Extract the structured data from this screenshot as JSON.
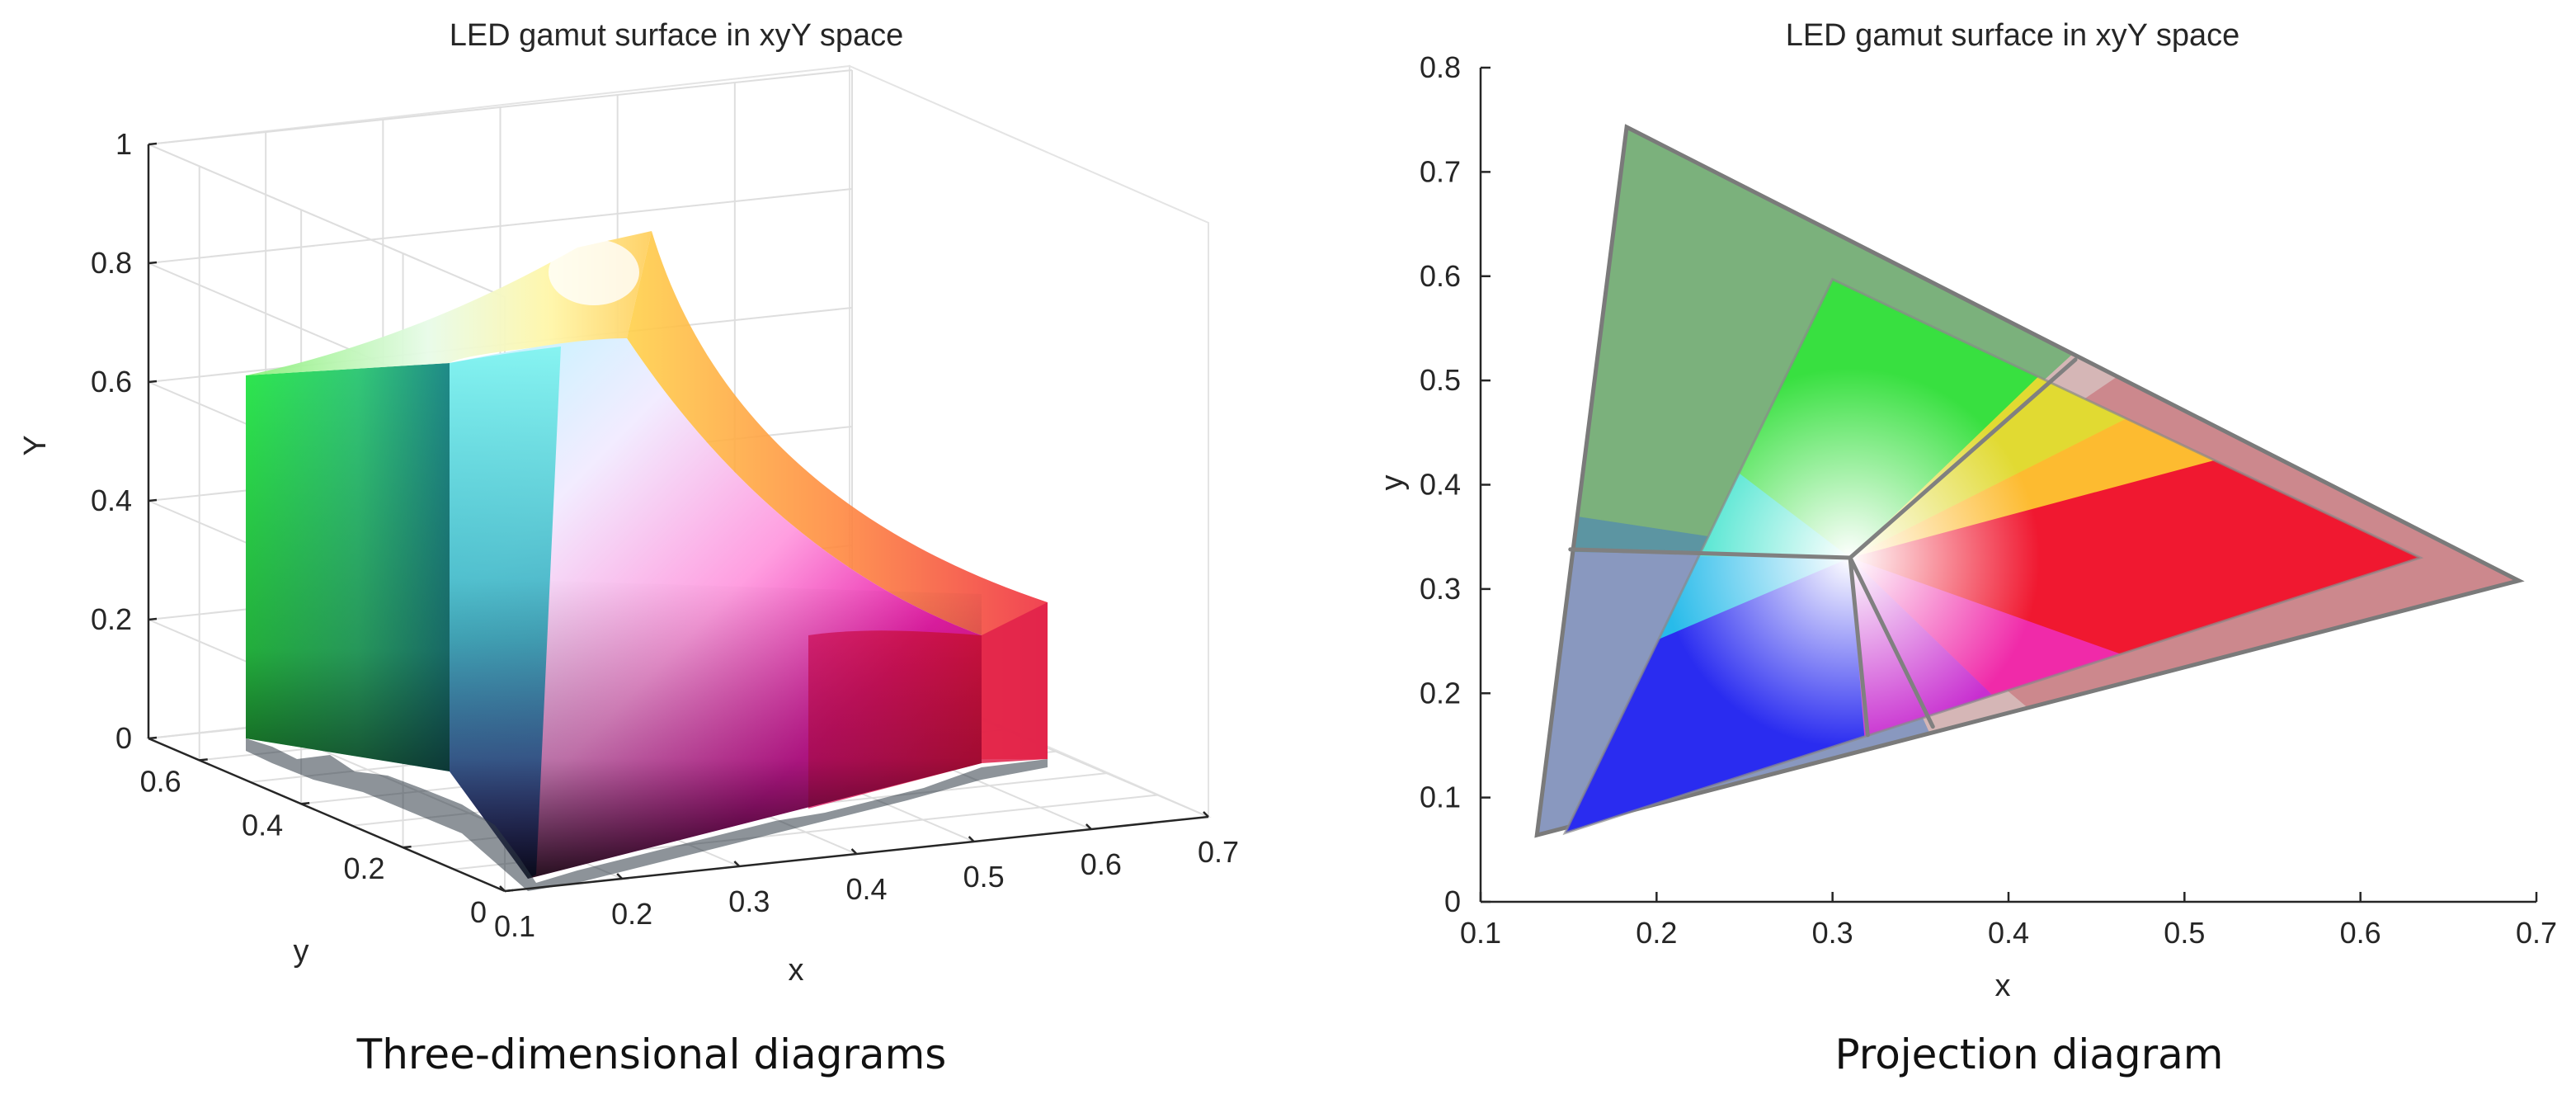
{
  "chart_data": [
    {
      "type": "surface3d",
      "title": "LED gamut surface in xyY space",
      "xlabel": "x",
      "ylabel": "y",
      "zlabel": "Y",
      "xlim": [
        0.1,
        0.7
      ],
      "ylim": [
        0,
        0.7
      ],
      "zlim": [
        0,
        1
      ],
      "xticks": [
        "0.1",
        "0.2",
        "0.3",
        "0.4",
        "0.5",
        "0.6",
        "0.7"
      ],
      "yticks": [
        "0",
        "0.2",
        "0.4",
        "0.6"
      ],
      "zticks": [
        "0",
        "0.2",
        "0.4",
        "0.6",
        "0.8",
        "1"
      ],
      "grid": true,
      "caption": "Three-dimensional diagrams"
    },
    {
      "type": "gamut-projection",
      "title": "LED gamut surface in xyY space",
      "xlabel": "x",
      "ylabel": "y",
      "xlim": [
        0.1,
        0.7
      ],
      "ylim": [
        0,
        0.8
      ],
      "xticks": [
        "0.1",
        "0.2",
        "0.3",
        "0.4",
        "0.5",
        "0.6",
        "0.7"
      ],
      "yticks": [
        "0",
        "0.1",
        "0.2",
        "0.3",
        "0.4",
        "0.5",
        "0.6",
        "0.7",
        "0.8"
      ],
      "grid": false,
      "outer_triangle": {
        "green": [
          0.183,
          0.743
        ],
        "red": [
          0.69,
          0.308
        ],
        "blue": [
          0.132,
          0.064
        ]
      },
      "inner_triangle": {
        "green": [
          0.3,
          0.597
        ],
        "red": [
          0.634,
          0.33
        ],
        "blue": [
          0.148,
          0.066
        ]
      },
      "white_point": [
        0.31,
        0.33
      ],
      "boundary_lines": [
        {
          "from": [
            0.31,
            0.33
          ],
          "to": [
            0.438,
            0.52
          ]
        },
        {
          "from": [
            0.31,
            0.33
          ],
          "to": [
            0.151,
            0.338
          ]
        },
        {
          "from": [
            0.31,
            0.33
          ],
          "to": [
            0.357,
            0.168
          ]
        },
        {
          "from": [
            0.31,
            0.33
          ],
          "to": [
            0.32,
            0.16
          ]
        }
      ],
      "caption": "Projection diagram"
    }
  ]
}
